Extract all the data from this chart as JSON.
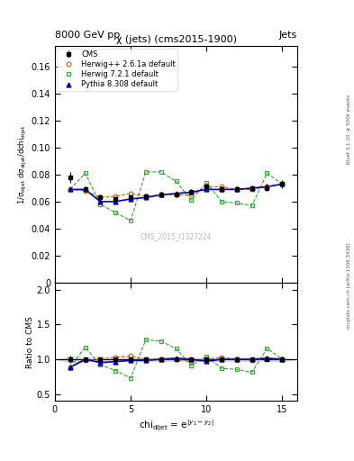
{
  "title": "χ (jets) (cms2015-1900)",
  "header_left": "8000 GeV pp",
  "header_right": "Jets",
  "watermark": "CMS_2015_I1327224",
  "right_label": "mcplots.cern.ch [arXiv:1306.3436]",
  "right_label2": "Rivet 3.1.10, ≥ 500k events",
  "xlabel": "chi$_{\\rm dijet}$ = e$^{|y_1-y_2|}$",
  "ylabel": "1/σ$_{\\rm dijet}$ dσ$_{\\rm dijet}$/dchi$_{\\rm dijet}$",
  "ylabel_ratio": "Ratio to CMS",
  "cms_x": [
    1,
    2,
    3,
    4,
    5,
    6,
    7,
    8,
    9,
    10,
    11,
    12,
    13,
    14,
    15
  ],
  "cms_y": [
    0.078,
    0.069,
    0.063,
    0.062,
    0.063,
    0.064,
    0.065,
    0.065,
    0.067,
    0.071,
    0.069,
    0.069,
    0.07,
    0.07,
    0.073
  ],
  "cms_yerr": [
    0.004,
    0.002,
    0.002,
    0.002,
    0.002,
    0.002,
    0.002,
    0.002,
    0.002,
    0.002,
    0.002,
    0.002,
    0.002,
    0.002,
    0.003
  ],
  "herwigpp_x": [
    1,
    2,
    3,
    4,
    5,
    6,
    7,
    8,
    9,
    10,
    11,
    12,
    13,
    14,
    15
  ],
  "herwigpp_y": [
    0.069,
    0.068,
    0.063,
    0.064,
    0.066,
    0.064,
    0.065,
    0.065,
    0.065,
    0.071,
    0.071,
    0.069,
    0.069,
    0.071,
    0.073
  ],
  "herwigpp_yerr": [
    0.001,
    0.001,
    0.001,
    0.001,
    0.001,
    0.001,
    0.001,
    0.001,
    0.001,
    0.001,
    0.001,
    0.001,
    0.001,
    0.001,
    0.001
  ],
  "herwig721_x": [
    1,
    2,
    3,
    4,
    5,
    6,
    7,
    8,
    9,
    10,
    11,
    12,
    13,
    14,
    15
  ],
  "herwig721_y": [
    0.069,
    0.081,
    0.058,
    0.052,
    0.046,
    0.082,
    0.082,
    0.075,
    0.061,
    0.074,
    0.06,
    0.059,
    0.057,
    0.081,
    0.073
  ],
  "herwig721_yerr": [
    0.01,
    0.012,
    0.01,
    0.008,
    0.013,
    0.01,
    0.01,
    0.015,
    0.012,
    0.014,
    0.01,
    0.01,
    0.01,
    0.012,
    0.014
  ],
  "pythia_x": [
    1,
    2,
    3,
    4,
    5,
    6,
    7,
    8,
    9,
    10,
    11,
    12,
    13,
    14,
    15
  ],
  "pythia_y": [
    0.069,
    0.069,
    0.06,
    0.06,
    0.062,
    0.063,
    0.065,
    0.066,
    0.067,
    0.069,
    0.069,
    0.069,
    0.07,
    0.071,
    0.073
  ],
  "pythia_yerr": [
    0.001,
    0.001,
    0.001,
    0.001,
    0.001,
    0.001,
    0.001,
    0.001,
    0.001,
    0.001,
    0.001,
    0.001,
    0.001,
    0.001,
    0.001
  ],
  "xlim": [
    0,
    16
  ],
  "ylim": [
    0.0,
    0.175
  ],
  "ylim_ratio": [
    0.4,
    2.1
  ],
  "yticks_main": [
    0.0,
    0.02,
    0.04,
    0.06,
    0.08,
    0.1,
    0.12,
    0.14,
    0.16
  ],
  "yticks_ratio": [
    0.5,
    1.0,
    1.5,
    2.0
  ],
  "xticks": [
    0,
    5,
    10,
    15
  ],
  "color_cms": "#000000",
  "color_herwigpp": "#cc6600",
  "color_herwig721": "#33aa33",
  "color_pythia": "#0000cc",
  "color_cms_band": "#aaaaaa",
  "color_cms_band_ratio": "#bbbbbb",
  "color_pythia_band": "#aaddaa"
}
